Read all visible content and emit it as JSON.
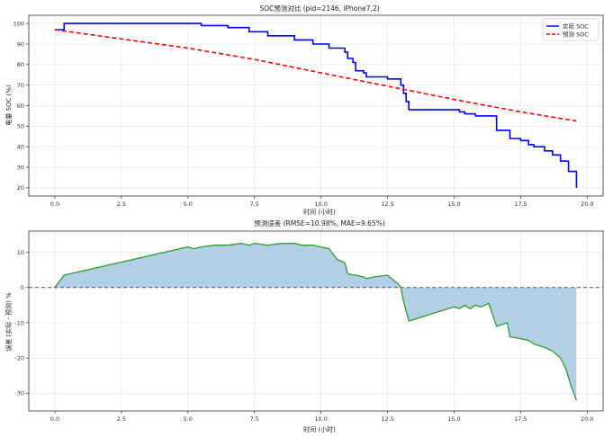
{
  "chart_data": [
    {
      "type": "line",
      "title": "SOC预测对比 (pid=2146, iPhone7,2)",
      "xlabel": "时间 (小时)",
      "ylabel": "电量 SOC (%)",
      "xlim": [
        -0.98,
        20.6
      ],
      "ylim": [
        16,
        104
      ],
      "xticks": [
        "0.0",
        "2.5",
        "5.0",
        "7.5",
        "10.0",
        "12.5",
        "15.0",
        "17.5",
        "20.0"
      ],
      "yticks": [
        "20",
        "30",
        "40",
        "50",
        "60",
        "70",
        "80",
        "90",
        "100"
      ],
      "grid": true,
      "legend": "top-right",
      "series": [
        {
          "name": "实际 SOC",
          "color": "#0000ff",
          "style": "solid",
          "x": [
            0.0,
            0.35,
            5.0,
            5.5,
            6.5,
            7.3,
            8.0,
            9.0,
            9.7,
            10.3,
            10.9,
            11.0,
            11.2,
            11.3,
            11.6,
            11.7,
            12.5,
            13.0,
            13.1,
            13.2,
            13.3,
            15.0,
            15.2,
            15.4,
            15.8,
            16.0,
            16.5,
            16.6,
            17.0,
            17.1,
            17.5,
            17.8,
            18.0,
            18.4,
            18.7,
            19.0,
            19.3,
            19.6
          ],
          "y": [
            97,
            100,
            100,
            99,
            98,
            96,
            94,
            92,
            90,
            88,
            86,
            83,
            81,
            77,
            76,
            74,
            73,
            70,
            66,
            62,
            58,
            58,
            57,
            56,
            55,
            55,
            55,
            48,
            48,
            44,
            43,
            41,
            40,
            38,
            36,
            33,
            28,
            20
          ]
        },
        {
          "name": "预测 SOC",
          "color": "#ff0000",
          "style": "dashed",
          "x": [
            0.0,
            2.5,
            5.0,
            7.5,
            10.0,
            12.5,
            15.0,
            17.5,
            19.6
          ],
          "y": [
            97,
            92.5,
            88,
            82.5,
            76,
            69.5,
            63,
            57,
            52.5
          ]
        }
      ]
    },
    {
      "type": "area",
      "title": "预测误差 (RMSE=10.98%, MAE=9.65%)",
      "xlabel": "时间 (小时)",
      "ylabel": "误差 (实际 - 预测) %",
      "xlim": [
        -0.98,
        20.6
      ],
      "ylim": [
        -35,
        16
      ],
      "xticks": [
        "0.0",
        "2.5",
        "5.0",
        "7.5",
        "10.0",
        "12.5",
        "15.0",
        "17.5",
        "20.0"
      ],
      "yticks": [
        "10",
        "0",
        "-10",
        "-20",
        "-30"
      ],
      "grid": true,
      "baseline": 0,
      "series": [
        {
          "name": "",
          "line_color": "#2ca02c",
          "fill_color": "#b3cfe6",
          "x": [
            0.0,
            0.35,
            5.0,
            5.2,
            5.5,
            6.0,
            6.5,
            7.0,
            7.3,
            7.5,
            8.0,
            8.5,
            9.0,
            9.3,
            9.7,
            10.0,
            10.3,
            10.6,
            10.9,
            11.0,
            11.2,
            11.3,
            11.6,
            11.7,
            12.0,
            12.5,
            12.9,
            13.0,
            13.1,
            13.3,
            15.0,
            15.2,
            15.4,
            15.6,
            15.8,
            16.0,
            16.3,
            16.6,
            17.0,
            17.1,
            17.5,
            17.8,
            18.0,
            18.4,
            18.7,
            19.0,
            19.2,
            19.4,
            19.6
          ],
          "y": [
            0,
            3.5,
            11.5,
            11,
            11.5,
            12,
            12,
            12.5,
            12,
            12.5,
            12,
            12.5,
            12.5,
            12,
            12,
            11.5,
            11,
            8,
            7,
            4,
            3.5,
            3.5,
            3,
            2.5,
            3,
            3.5,
            1,
            0,
            -4,
            -9.5,
            -5.5,
            -6,
            -5,
            -6,
            -5,
            -5.5,
            -4.5,
            -11,
            -10,
            -14,
            -14.5,
            -15,
            -16,
            -17,
            -18,
            -20,
            -23,
            -28,
            -32
          ]
        }
      ]
    }
  ]
}
